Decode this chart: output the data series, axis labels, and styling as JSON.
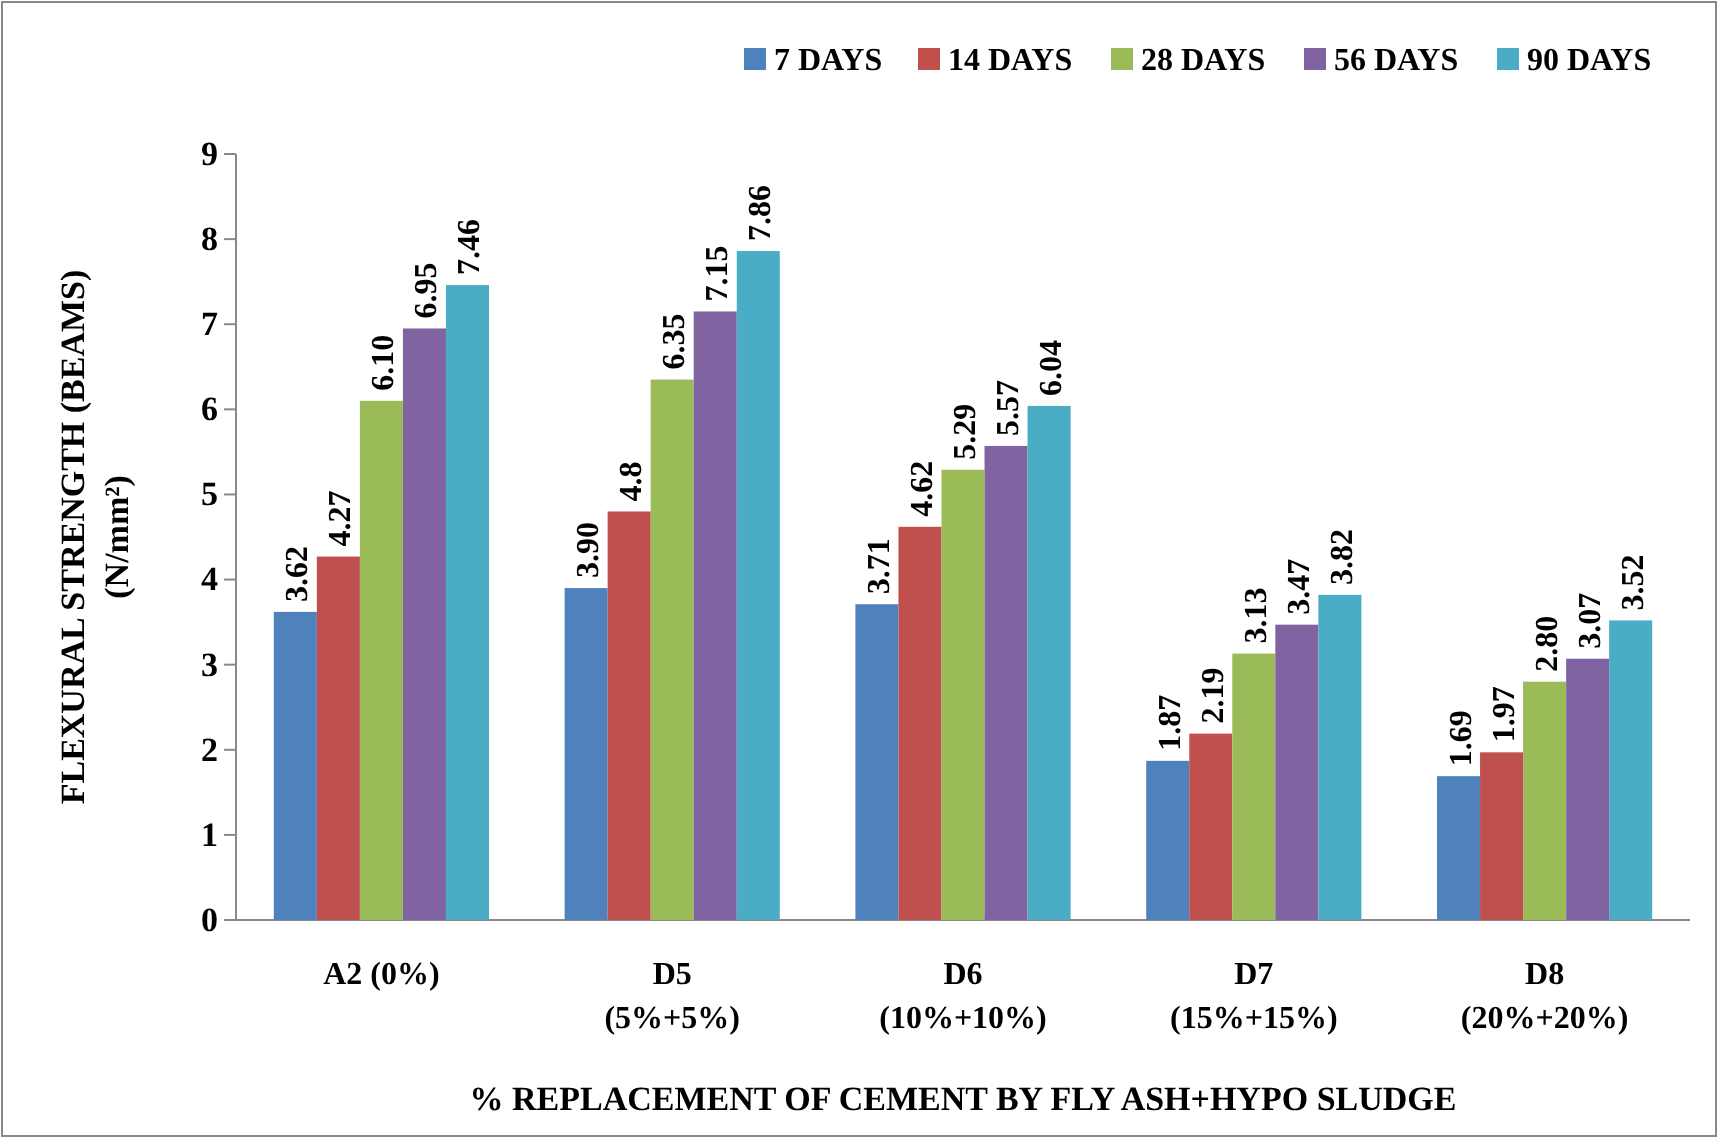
{
  "chart_data": {
    "type": "bar",
    "xlabel": "% REPLACEMENT OF CEMENT BY FLY ASH+HYPO SLUDGE",
    "ylabel": "FLEXURAL STRENGTH (BEAMS)\n(N/mm²)",
    "categories": [
      "A2 (0%)",
      "D5\n(5%+5%)",
      "D6\n(10%+10%)",
      "D7\n(15%+15%)",
      "D8\n(20%+20%)"
    ],
    "series": [
      {
        "name": "7 DAYS",
        "color": "#4f81bd",
        "values": [
          3.62,
          3.9,
          3.71,
          1.87,
          1.69
        ],
        "value_labels": [
          "3.62",
          "3.90",
          "3.71",
          "1.87",
          "1.69"
        ]
      },
      {
        "name": "14 DAYS",
        "color": "#c0504d",
        "values": [
          4.27,
          4.8,
          4.62,
          2.19,
          1.97
        ],
        "value_labels": [
          "4.27",
          "4.8",
          "4.62",
          "2.19",
          "1.97"
        ]
      },
      {
        "name": "28 DAYS",
        "color": "#9bbb59",
        "values": [
          6.1,
          6.35,
          5.29,
          3.13,
          2.8
        ],
        "value_labels": [
          "6.10",
          "6.35",
          "5.29",
          "3.13",
          "2.80"
        ]
      },
      {
        "name": "56 DAYS",
        "color": "#8064a2",
        "values": [
          6.95,
          7.15,
          5.57,
          3.47,
          3.07
        ],
        "value_labels": [
          "6.95",
          "7.15",
          "5.57",
          "3.47",
          "3.07"
        ]
      },
      {
        "name": "90 DAYS",
        "color": "#4bacc6",
        "values": [
          7.46,
          7.86,
          6.04,
          3.82,
          3.52
        ],
        "value_labels": [
          "7.46",
          "7.86",
          "6.04",
          "3.82",
          "3.52"
        ]
      }
    ],
    "ylim": [
      0,
      9
    ],
    "yticks": [
      0,
      1,
      2,
      3,
      4,
      5,
      6,
      7,
      8,
      9
    ],
    "grid": false,
    "legend": "top right"
  }
}
